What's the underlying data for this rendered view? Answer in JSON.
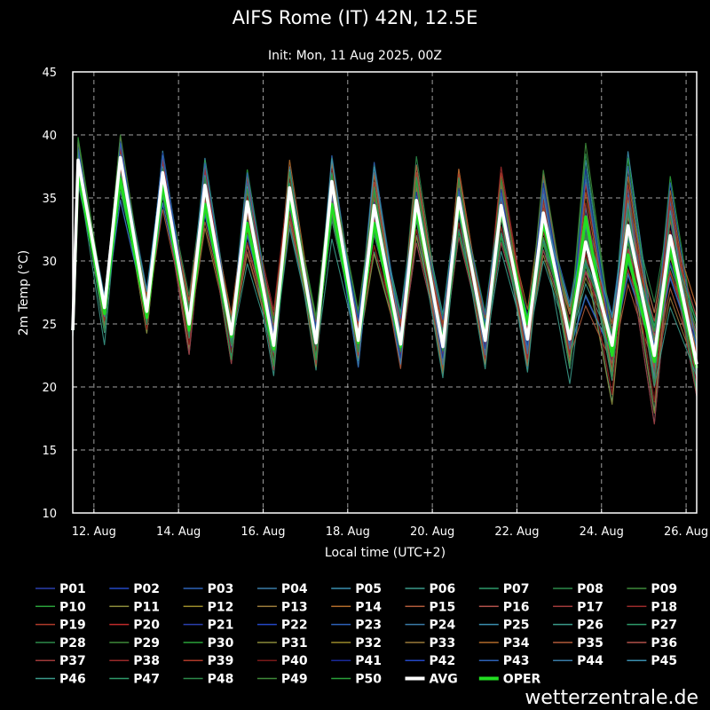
{
  "chart_data": {
    "type": "line",
    "title": "AIFS Rome (IT) 42N, 12.5E",
    "subtitle": "Init: Mon, 11 Aug 2025, 00Z",
    "xlabel": "Local time (UTC+2)",
    "ylabel": "2m Temp (°C)",
    "ylim": [
      10,
      45
    ],
    "yticks": [
      10,
      15,
      20,
      25,
      30,
      35,
      40,
      45
    ],
    "xlim": [
      "2025-08-11 12:00",
      "2025-08-26 06:00"
    ],
    "xticks": [
      {
        "date": "2025-08-12",
        "label": "12. Aug"
      },
      {
        "date": "2025-08-14",
        "label": "14. Aug"
      },
      {
        "date": "2025-08-16",
        "label": "16. Aug"
      },
      {
        "date": "2025-08-18",
        "label": "18. Aug"
      },
      {
        "date": "2025-08-20",
        "label": "20. Aug"
      },
      {
        "date": "2025-08-22",
        "label": "22. Aug"
      },
      {
        "date": "2025-08-24",
        "label": "24. Aug"
      },
      {
        "date": "2025-08-26",
        "label": "26. Aug"
      }
    ],
    "grid": true,
    "legend_position": "bottom",
    "avg": {
      "name": "AVG",
      "color": "#ffffff",
      "x": [
        "2025-08-11 12:00",
        "2025-08-11 15:00",
        "2025-08-12 06:00",
        "2025-08-12 15:00",
        "2025-08-13 06:00",
        "2025-08-13 15:00",
        "2025-08-14 06:00",
        "2025-08-14 15:00",
        "2025-08-15 06:00",
        "2025-08-15 15:00",
        "2025-08-16 06:00",
        "2025-08-16 15:00",
        "2025-08-17 06:00",
        "2025-08-17 15:00",
        "2025-08-18 06:00",
        "2025-08-18 15:00",
        "2025-08-19 06:00",
        "2025-08-19 15:00",
        "2025-08-20 06:00",
        "2025-08-20 15:00",
        "2025-08-21 06:00",
        "2025-08-21 15:00",
        "2025-08-22 06:00",
        "2025-08-22 15:00",
        "2025-08-23 06:00",
        "2025-08-23 15:00",
        "2025-08-24 06:00",
        "2025-08-24 15:00",
        "2025-08-25 06:00",
        "2025-08-25 15:00",
        "2025-08-26 06:00"
      ],
      "y": [
        24.5,
        38.0,
        26.3,
        38.2,
        26.0,
        37.0,
        25.0,
        36.0,
        24.2,
        34.7,
        23.3,
        35.8,
        23.5,
        36.3,
        23.7,
        34.4,
        23.4,
        34.8,
        23.2,
        35.0,
        23.7,
        34.4,
        23.8,
        33.8,
        23.8,
        31.5,
        23.3,
        32.8,
        22.5,
        32.0,
        21.8
      ]
    },
    "oper": {
      "name": "OPER",
      "color": "#22dd22",
      "x": [
        "2025-08-11 12:00",
        "2025-08-11 15:00",
        "2025-08-12 06:00",
        "2025-08-12 15:00",
        "2025-08-13 06:00",
        "2025-08-13 15:00",
        "2025-08-14 06:00",
        "2025-08-14 15:00",
        "2025-08-15 06:00",
        "2025-08-15 15:00",
        "2025-08-16 06:00",
        "2025-08-16 15:00",
        "2025-08-17 06:00",
        "2025-08-17 15:00",
        "2025-08-18 06:00",
        "2025-08-18 15:00",
        "2025-08-19 06:00",
        "2025-08-19 15:00",
        "2025-08-20 06:00",
        "2025-08-20 15:00",
        "2025-08-21 06:00",
        "2025-08-21 15:00",
        "2025-08-22 06:00",
        "2025-08-22 15:00",
        "2025-08-23 06:00",
        "2025-08-23 15:00",
        "2025-08-24 06:00",
        "2025-08-24 15:00",
        "2025-08-25 06:00",
        "2025-08-25 15:00",
        "2025-08-26 06:00"
      ],
      "y": [
        24.5,
        37.0,
        25.8,
        36.5,
        25.5,
        36.0,
        24.5,
        34.5,
        24.0,
        33.0,
        23.0,
        35.0,
        23.5,
        34.5,
        23.5,
        33.0,
        23.2,
        34.0,
        23.5,
        34.5,
        24.0,
        34.0,
        25.0,
        33.0,
        24.0,
        33.5,
        22.5,
        30.5,
        22.0,
        31.0,
        21.5
      ]
    },
    "ensemble": {
      "member_count": 50,
      "x": [
        "2025-08-11 12:00",
        "2025-08-11 15:00",
        "2025-08-12 06:00",
        "2025-08-12 15:00",
        "2025-08-13 06:00",
        "2025-08-13 15:00",
        "2025-08-14 06:00",
        "2025-08-14 15:00",
        "2025-08-15 06:00",
        "2025-08-15 15:00",
        "2025-08-16 06:00",
        "2025-08-16 15:00",
        "2025-08-17 06:00",
        "2025-08-17 15:00",
        "2025-08-18 06:00",
        "2025-08-18 15:00",
        "2025-08-19 06:00",
        "2025-08-19 15:00",
        "2025-08-20 06:00",
        "2025-08-20 15:00",
        "2025-08-21 06:00",
        "2025-08-21 15:00",
        "2025-08-22 06:00",
        "2025-08-22 15:00",
        "2025-08-23 06:00",
        "2025-08-23 15:00",
        "2025-08-24 06:00",
        "2025-08-24 15:00",
        "2025-08-25 06:00",
        "2025-08-25 15:00",
        "2025-08-26 06:00"
      ],
      "min": [
        23.8,
        35.5,
        23.2,
        34.0,
        24.0,
        33.5,
        22.3,
        32.0,
        21.2,
        29.0,
        20.4,
        31.5,
        20.5,
        31.5,
        21.0,
        30.0,
        21.0,
        31.0,
        20.6,
        31.0,
        21.0,
        30.0,
        20.2,
        28.5,
        20.0,
        26.0,
        17.8,
        27.0,
        16.3,
        26.0,
        18.5
      ],
      "max": [
        24.8,
        40.2,
        27.5,
        40.4,
        28.0,
        39.2,
        27.5,
        38.4,
        26.0,
        37.4,
        26.2,
        38.4,
        26.0,
        39.0,
        26.5,
        38.3,
        26.5,
        38.6,
        26.0,
        37.7,
        26.0,
        37.6,
        26.5,
        38.4,
        27.5,
        40.7,
        26.0,
        40.0,
        27.0,
        37.5,
        27.0
      ]
    },
    "series": [
      {
        "name": "P01",
        "color": "#2a3fae",
        "offset": 0.3,
        "amp": 0.92
      },
      {
        "name": "P02",
        "color": "#2448c6",
        "offset": -0.6,
        "amp": 1.03
      },
      {
        "name": "P03",
        "color": "#2e62b8",
        "offset": 0.8,
        "amp": 0.85
      },
      {
        "name": "P04",
        "color": "#3a7ca8",
        "offset": -0.2,
        "amp": 1.1
      },
      {
        "name": "P05",
        "color": "#3b8fb0",
        "offset": 0.5,
        "amp": 0.95
      },
      {
        "name": "P06",
        "color": "#3a9a8a",
        "offset": -0.9,
        "amp": 1.0
      },
      {
        "name": "P07",
        "color": "#2e9a6a",
        "offset": 0.1,
        "amp": 1.07
      },
      {
        "name": "P08",
        "color": "#2c8a4a",
        "offset": 0.9,
        "amp": 0.9
      },
      {
        "name": "P09",
        "color": "#3e8a3a",
        "offset": -0.4,
        "amp": 0.97
      },
      {
        "name": "P10",
        "color": "#2aa03a",
        "offset": 0.6,
        "amp": 1.05
      },
      {
        "name": "P11",
        "color": "#8a8a3a",
        "offset": -0.7,
        "amp": 0.88
      },
      {
        "name": "P12",
        "color": "#9a8a2a",
        "offset": 0.2,
        "amp": 1.12
      },
      {
        "name": "P13",
        "color": "#9a7a3a",
        "offset": -0.1,
        "amp": 0.93
      },
      {
        "name": "P14",
        "color": "#b06a2a",
        "offset": 0.7,
        "amp": 1.01
      },
      {
        "name": "P15",
        "color": "#b05a3a",
        "offset": -0.8,
        "amp": 0.96
      },
      {
        "name": "P16",
        "color": "#b0504a",
        "offset": 0.4,
        "amp": 1.08
      },
      {
        "name": "P17",
        "color": "#a03a3a",
        "offset": -0.3,
        "amp": 0.91
      },
      {
        "name": "P18",
        "color": "#9a2a2a",
        "offset": 1.0,
        "amp": 0.99
      },
      {
        "name": "P19",
        "color": "#b03a2a",
        "offset": -0.5,
        "amp": 1.06
      },
      {
        "name": "P20",
        "color": "#c02a2a",
        "offset": 0.0,
        "amp": 0.94
      },
      {
        "name": "P21",
        "color": "#2a3fae",
        "offset": 0.6,
        "amp": 1.02
      },
      {
        "name": "P22",
        "color": "#2448c6",
        "offset": -0.2,
        "amp": 0.89
      },
      {
        "name": "P23",
        "color": "#2e62b8",
        "offset": 0.3,
        "amp": 1.11
      },
      {
        "name": "P24",
        "color": "#3a7ca8",
        "offset": -0.9,
        "amp": 0.97
      },
      {
        "name": "P25",
        "color": "#3b8fb0",
        "offset": 0.8,
        "amp": 1.04
      },
      {
        "name": "P26",
        "color": "#3a9a8a",
        "offset": -0.6,
        "amp": 0.92
      },
      {
        "name": "P27",
        "color": "#2e9a6a",
        "offset": 0.1,
        "amp": 1.0
      },
      {
        "name": "P28",
        "color": "#2c8a4a",
        "offset": 0.5,
        "amp": 0.86
      },
      {
        "name": "P29",
        "color": "#3e8a3a",
        "offset": -0.4,
        "amp": 1.09
      },
      {
        "name": "P30",
        "color": "#2aa03a",
        "offset": 0.9,
        "amp": 0.95
      },
      {
        "name": "P31",
        "color": "#8a8a3a",
        "offset": -0.1,
        "amp": 1.03
      },
      {
        "name": "P32",
        "color": "#9a8a2a",
        "offset": 0.2,
        "amp": 0.9
      },
      {
        "name": "P33",
        "color": "#9a7a3a",
        "offset": -0.7,
        "amp": 1.07
      },
      {
        "name": "P34",
        "color": "#b06a2a",
        "offset": 0.7,
        "amp": 0.98
      },
      {
        "name": "P35",
        "color": "#b05a3a",
        "offset": -0.3,
        "amp": 1.01
      },
      {
        "name": "P36",
        "color": "#b0504a",
        "offset": 0.4,
        "amp": 0.93
      },
      {
        "name": "P37",
        "color": "#a03a3a",
        "offset": -0.8,
        "amp": 1.1
      },
      {
        "name": "P38",
        "color": "#9a2a2a",
        "offset": 0.0,
        "amp": 0.96
      },
      {
        "name": "P39",
        "color": "#b03a2a",
        "offset": 0.6,
        "amp": 1.05
      },
      {
        "name": "P40",
        "color": "#7a1a1a",
        "offset": -0.5,
        "amp": 0.88
      },
      {
        "name": "P41",
        "color": "#1a2a9a",
        "offset": 0.3,
        "amp": 1.02
      },
      {
        "name": "P42",
        "color": "#2448c6",
        "offset": -0.2,
        "amp": 0.94
      },
      {
        "name": "P43",
        "color": "#2e62b8",
        "offset": 0.8,
        "amp": 1.08
      },
      {
        "name": "P44",
        "color": "#3a7ca8",
        "offset": -0.6,
        "amp": 0.91
      },
      {
        "name": "P45",
        "color": "#3b8fb0",
        "offset": 0.5,
        "amp": 0.99
      },
      {
        "name": "P46",
        "color": "#3a9a8a",
        "offset": -0.9,
        "amp": 1.04
      },
      {
        "name": "P47",
        "color": "#2e9a6a",
        "offset": 0.2,
        "amp": 0.97
      },
      {
        "name": "P48",
        "color": "#2c8a4a",
        "offset": -0.1,
        "amp": 1.06
      },
      {
        "name": "P49",
        "color": "#3e8a3a",
        "offset": 0.7,
        "amp": 0.9
      },
      {
        "name": "P50",
        "color": "#2aa03a",
        "offset": -0.4,
        "amp": 1.0
      }
    ],
    "legend": {
      "entries_order": [
        "P01",
        "P02",
        "P03",
        "P04",
        "P05",
        "P06",
        "P07",
        "P08",
        "P09",
        "P10",
        "P11",
        "P12",
        "P13",
        "P14",
        "P15",
        "P16",
        "P17",
        "P18",
        "P19",
        "P20",
        "P21",
        "P22",
        "P23",
        "P24",
        "P25",
        "P26",
        "P27",
        "P28",
        "P29",
        "P30",
        "P31",
        "P32",
        "P33",
        "P34",
        "P35",
        "P36",
        "P37",
        "P38",
        "P39",
        "P40",
        "P41",
        "P42",
        "P43",
        "P44",
        "P45",
        "P46",
        "P47",
        "P48",
        "P49",
        "P50",
        "AVG",
        "OPER"
      ]
    }
  },
  "branding": {
    "site": "wetterzentrale.de"
  }
}
